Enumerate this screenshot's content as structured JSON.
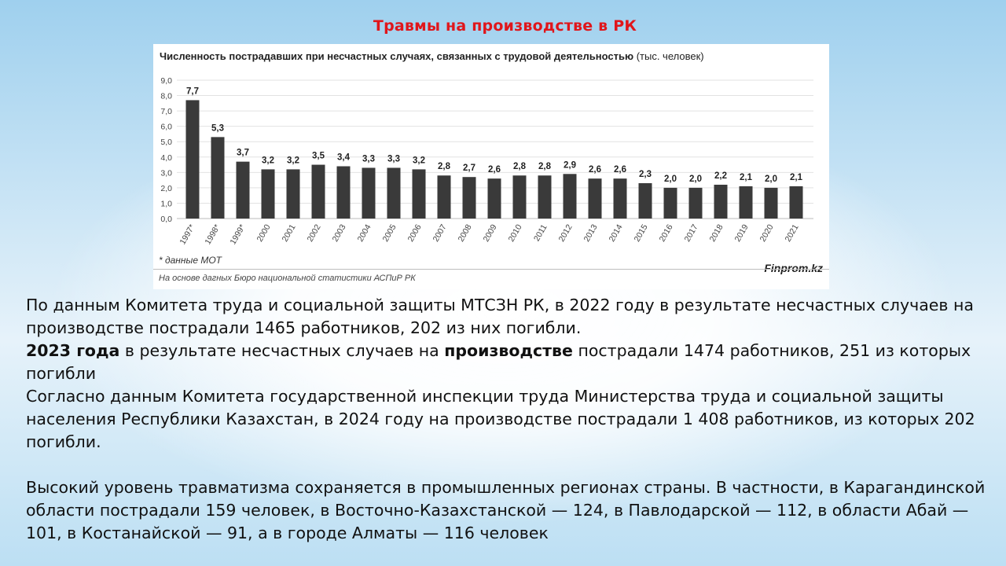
{
  "slide": {
    "title": "Травмы на производстве  в РК"
  },
  "chart": {
    "heading_bold": "Численность пострадавших при несчастных случаях, связанных с трудовой деятельностью",
    "heading_unit": " (тыс. человек)",
    "note": "* данные МОТ",
    "brand": "Finprom.kz",
    "source": "На основе дагных Бюро национальной статистики АСПиР РК"
  },
  "chart_data": {
    "type": "bar",
    "categories": [
      "1997*",
      "1998*",
      "1999*",
      "2000",
      "2001",
      "2002",
      "2003",
      "2004",
      "2005",
      "2006",
      "2007",
      "2008",
      "2009",
      "2010",
      "2011",
      "2012",
      "2013",
      "2014",
      "2015",
      "2016",
      "2017",
      "2018",
      "2019",
      "2020",
      "2021"
    ],
    "values": [
      7.7,
      5.3,
      3.7,
      3.2,
      3.2,
      3.5,
      3.4,
      3.3,
      3.3,
      3.2,
      2.8,
      2.7,
      2.6,
      2.8,
      2.8,
      2.9,
      2.6,
      2.6,
      2.3,
      2.0,
      2.0,
      2.2,
      2.1,
      2.0,
      2.1
    ],
    "value_labels": [
      "7,7",
      "5,3",
      "3,7",
      "3,2",
      "3,2",
      "3,5",
      "3,4",
      "3,3",
      "3,3",
      "3,2",
      "2,8",
      "2,7",
      "2,6",
      "2,8",
      "2,8",
      "2,9",
      "2,6",
      "2,6",
      "2,3",
      "2,0",
      "2,0",
      "2,2",
      "2,1",
      "2,0",
      "2,1"
    ],
    "yticks": [
      "0,0",
      "1,0",
      "2,0",
      "3,0",
      "4,0",
      "5,0",
      "6,0",
      "7,0",
      "8,0",
      "9,0"
    ],
    "ylim": [
      0,
      9
    ],
    "title": "Численность пострадавших при несчастных случаях, связанных с трудовой деятельностью (тыс. человек)",
    "xlabel": "",
    "ylabel": "",
    "grid": true,
    "bar_color": "#3a3a3a"
  },
  "text": {
    "p1": "По данным Комитета труда и социальной защиты МТСЗН РК, в 2022 году в результате несчастных случаев на производстве пострадали 1465 работников, 202 из них погибли.",
    "p2_bold1": "2023 года",
    "p2_mid": " в результате несчастных случаев на ",
    "p2_bold2": "производстве",
    "p2_end": " пострадали 1474 работников, 251 из которых погибли",
    "p3": "Согласно данным Комитета государственной инспекции труда Министерства труда и социальной защиты населения Республики Казахстан, в 2024 году на производстве пострадали 1 408 работников, из которых 202 погибли.",
    "p4": "Высокий уровень травматизма сохраняется в промышленных регионах страны. В частности, в Карагандинской области пострадали 159 человек, в Восточно-Казахстанской — 124, в Павлодарской — 112, в области Абай — 101, в Костанайской — 91, а в городе Алматы — 116 человек"
  }
}
